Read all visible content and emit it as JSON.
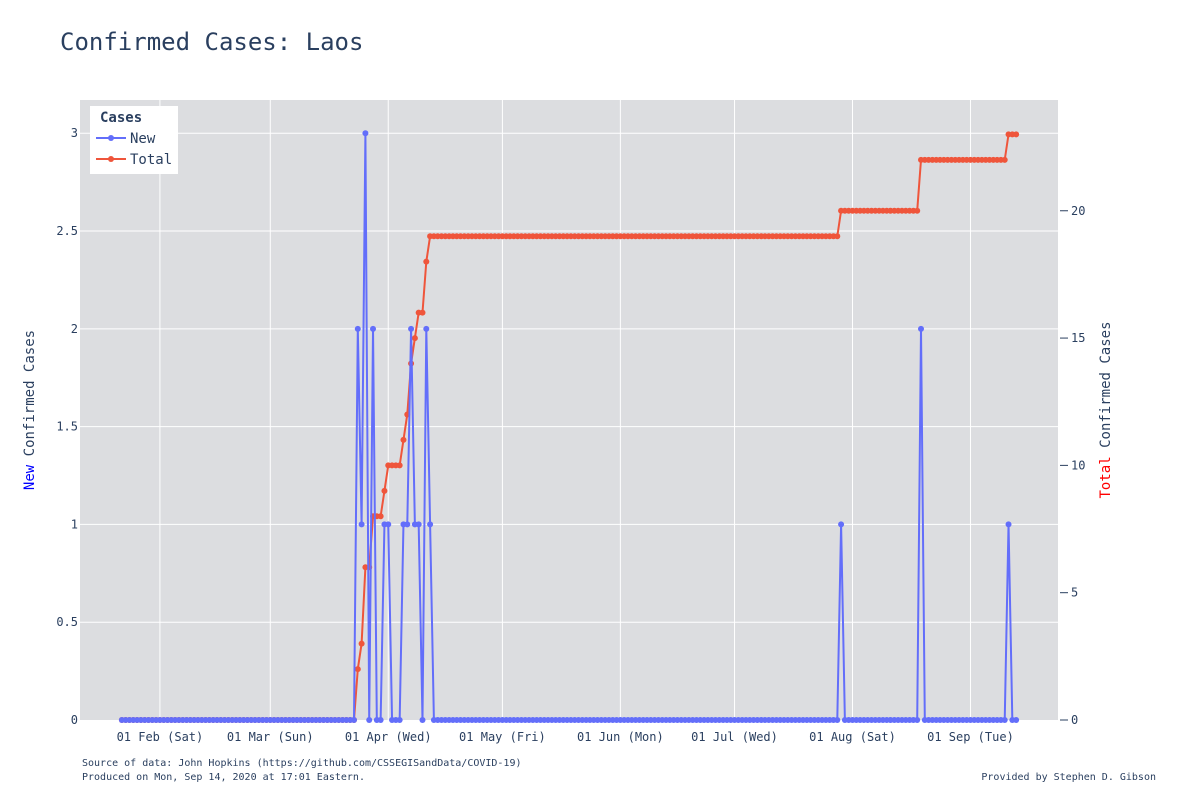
{
  "chart_data": {
    "type": "line",
    "title": "Confirmed Cases: Laos",
    "y_left_label": {
      "prefix": "New",
      "suffix": " Confirmed Cases",
      "prefix_color": "#0000ff"
    },
    "y_right_label": {
      "prefix": "Total",
      "suffix": " Confirmed Cases",
      "prefix_color": "#ff0000"
    },
    "y_left_range": [
      0,
      3.17
    ],
    "y_right_range": [
      0,
      24.35
    ],
    "y_left_ticks": [
      {
        "v": 0,
        "label": "0"
      },
      {
        "v": 0.5,
        "label": "0.5"
      },
      {
        "v": 1,
        "label": "1"
      },
      {
        "v": 1.5,
        "label": "1.5"
      },
      {
        "v": 2,
        "label": "2"
      },
      {
        "v": 2.5,
        "label": "2.5"
      },
      {
        "v": 3,
        "label": "3"
      }
    ],
    "y_right_ticks": [
      {
        "v": 0,
        "label": "0"
      },
      {
        "v": 5,
        "label": "5"
      },
      {
        "v": 10,
        "label": "10"
      },
      {
        "v": 15,
        "label": "15"
      },
      {
        "v": 20,
        "label": "20"
      }
    ],
    "x_range": [
      "2020-01-11",
      "2020-09-24"
    ],
    "x_ticks": [
      {
        "date": "2020-02-01",
        "label": "01 Feb (Sat)"
      },
      {
        "date": "2020-03-01",
        "label": "01 Mar (Sun)"
      },
      {
        "date": "2020-04-01",
        "label": "01 Apr (Wed)"
      },
      {
        "date": "2020-05-01",
        "label": "01 May (Fri)"
      },
      {
        "date": "2020-06-01",
        "label": "01 Jun (Mon)"
      },
      {
        "date": "2020-07-01",
        "label": "01 Jul (Wed)"
      },
      {
        "date": "2020-08-01",
        "label": "01 Aug (Sat)"
      },
      {
        "date": "2020-09-01",
        "label": "01 Sep (Tue)"
      }
    ],
    "start_date": "2020-01-22",
    "end_date": "2020-09-13",
    "new_cases": {
      "2020-03-24": 2,
      "2020-03-25": 1,
      "2020-03-26": 3,
      "2020-03-28": 2,
      "2020-03-31": 1,
      "2020-04-01": 1,
      "2020-04-05": 1,
      "2020-04-06": 1,
      "2020-04-07": 2,
      "2020-04-08": 1,
      "2020-04-09": 1,
      "2020-04-11": 2,
      "2020-04-12": 1,
      "2020-07-29": 1,
      "2020-08-19": 2,
      "2020-09-11": 1
    },
    "grid": true,
    "legend": {
      "title": "Cases",
      "placement": "top-left",
      "items": [
        {
          "name": "New",
          "color": "#636efa"
        },
        {
          "name": "Total",
          "color": "#ef553b"
        }
      ]
    },
    "colors": {
      "plot_bg": "#dcdde0",
      "grid": "#ffffff",
      "text": "#2a3f5f"
    }
  },
  "footer": {
    "source": "Source of data: John Hopkins (https://github.com/CSSEGISandData/COVID-19)",
    "produced": "Produced on Mon, Sep 14, 2020 at 17:01 Eastern.",
    "credit": "Provided by Stephen D. Gibson"
  }
}
